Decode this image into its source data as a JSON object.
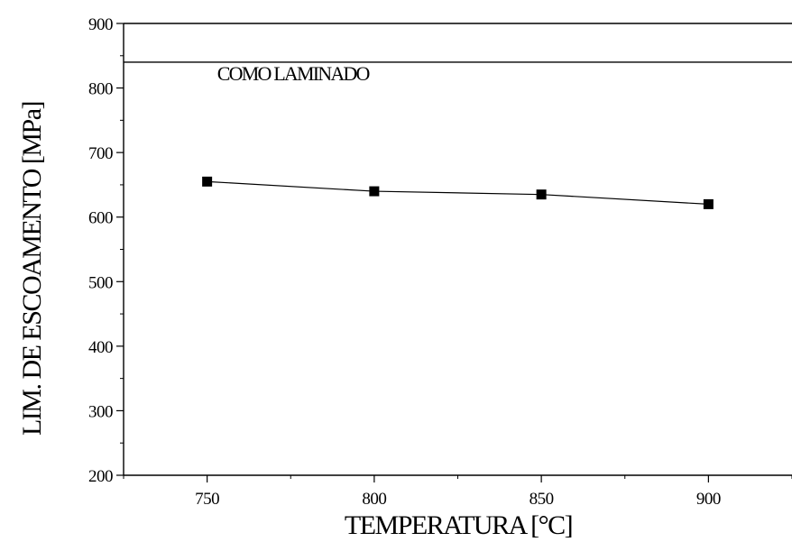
{
  "chart_data": {
    "type": "line",
    "xlabel": "TEMPERATURA [°C]",
    "ylabel": "LIM. DE ESCOAMENTO [MPa]",
    "xlim": [
      725,
      925
    ],
    "ylim": [
      200,
      900
    ],
    "x_ticks": [
      "750",
      "800",
      "850",
      "900"
    ],
    "y_ticks": [
      "200",
      "300",
      "400",
      "500",
      "600",
      "700",
      "800",
      "900"
    ],
    "series": [
      {
        "marker": "square",
        "color": "#000000",
        "x": [
          750,
          800,
          850,
          900
        ],
        "y": [
          655,
          640,
          635,
          620
        ]
      }
    ],
    "reference_line": {
      "y": 840,
      "label": "COMO LAMINADO"
    },
    "grid": false,
    "legend": "none"
  }
}
